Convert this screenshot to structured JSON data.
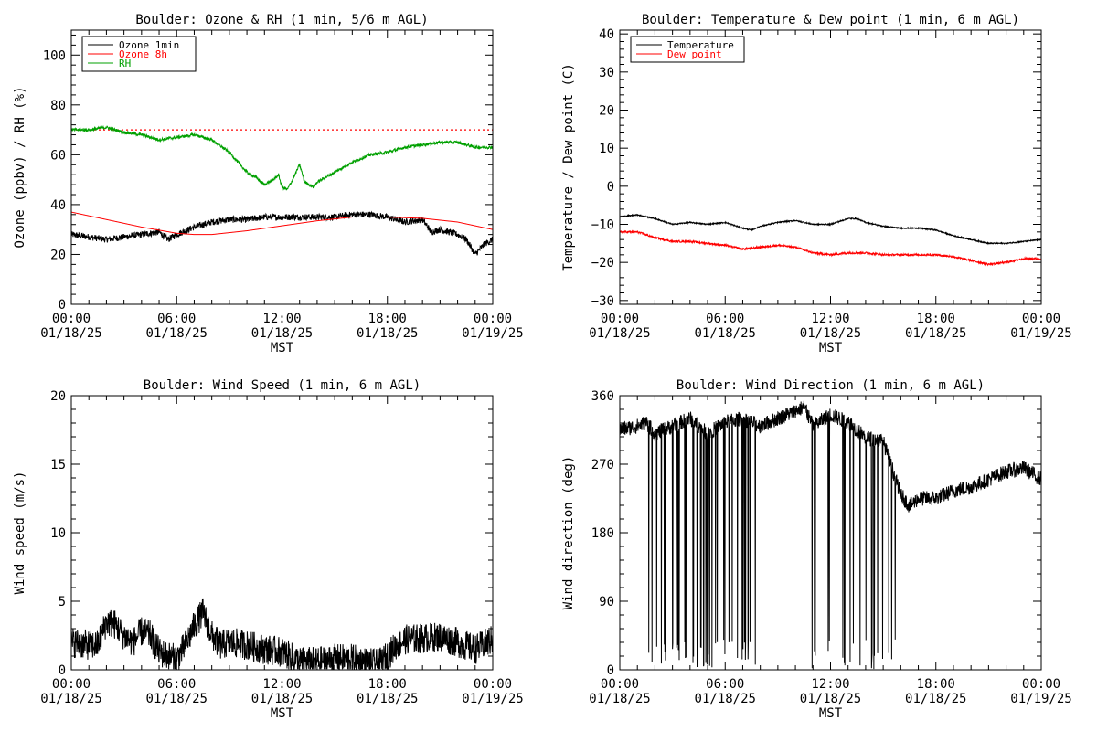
{
  "chart_data": [
    {
      "type": "line",
      "title": "Boulder: Ozone & RH (1 min, 5/6 m AGL)",
      "xlabel": "MST",
      "ylabel": "Ozone (ppbv) / RH (%)",
      "xlim": [
        0,
        24
      ],
      "ylim": [
        0,
        110
      ],
      "x_ticks": [
        0,
        6,
        12,
        18,
        24
      ],
      "x_tick_labels": [
        [
          "00:00",
          "01/18/25"
        ],
        [
          "06:00",
          "01/18/25"
        ],
        [
          "12:00",
          "01/18/25"
        ],
        [
          "18:00",
          "01/18/25"
        ],
        [
          "00:00",
          "01/19/25"
        ]
      ],
      "y_ticks": [
        0,
        20,
        40,
        60,
        80,
        100
      ],
      "y_tick_labels": [
        "0",
        "20",
        "40",
        "60",
        "80",
        "100"
      ],
      "legend": "top-left",
      "reference_line": {
        "y": 70,
        "color": "#ff0000",
        "style": "dotted"
      },
      "series": [
        {
          "name": "Ozone 1min",
          "color": "#000000",
          "noise": 1.3,
          "x": [
            0,
            1,
            2,
            3,
            4,
            5,
            5.5,
            6,
            7,
            8,
            9,
            10,
            11,
            12,
            13,
            14,
            15,
            16,
            17,
            18,
            19,
            20,
            20.5,
            21,
            22,
            22.5,
            23,
            23.5,
            24
          ],
          "y": [
            28,
            27,
            26,
            27,
            28,
            29,
            26,
            28,
            31,
            33,
            34,
            34,
            35,
            35,
            35,
            35,
            35,
            36,
            36,
            35,
            33,
            34,
            29,
            30,
            28,
            26,
            20,
            24,
            26
          ]
        },
        {
          "name": "Ozone 8h",
          "color": "#ff0000",
          "noise": 0,
          "x": [
            0,
            2,
            4,
            6,
            7,
            8,
            10,
            12,
            14,
            16,
            18,
            20,
            22,
            24
          ],
          "y": [
            37,
            34,
            31,
            28.5,
            28,
            28,
            29.5,
            31.5,
            33.5,
            35,
            35,
            34.5,
            33,
            30
          ]
        },
        {
          "name": "RH",
          "color": "#00a000",
          "noise": 0.6,
          "x": [
            0,
            1,
            2,
            3,
            4,
            5,
            6,
            7,
            8,
            9,
            10,
            10.5,
            11,
            11.5,
            11.8,
            12,
            12.3,
            12.6,
            13,
            13.3,
            13.8,
            14,
            15,
            16,
            17,
            18,
            19,
            20,
            21,
            22,
            23,
            24
          ],
          "y": [
            70,
            70,
            71,
            69,
            68,
            66,
            67,
            68,
            66,
            61,
            53,
            51,
            48,
            50,
            52,
            47,
            46,
            50,
            56,
            49,
            47,
            49,
            53,
            57,
            60,
            61,
            63,
            64,
            65,
            65,
            63,
            63
          ]
        }
      ]
    },
    {
      "type": "line",
      "title": "Boulder: Temperature & Dew point (1 min, 6 m AGL)",
      "xlabel": "MST",
      "ylabel": "Temperature / Dew point (C)",
      "xlim": [
        0,
        24
      ],
      "ylim": [
        -31,
        41
      ],
      "x_ticks": [
        0,
        6,
        12,
        18,
        24
      ],
      "x_tick_labels": [
        [
          "00:00",
          "01/18/25"
        ],
        [
          "06:00",
          "01/18/25"
        ],
        [
          "12:00",
          "01/18/25"
        ],
        [
          "18:00",
          "01/18/25"
        ],
        [
          "00:00",
          "01/19/25"
        ]
      ],
      "y_ticks": [
        -30,
        -20,
        -10,
        0,
        10,
        20,
        30,
        40
      ],
      "y_tick_labels": [
        "−30",
        "−20",
        "−10",
        "0",
        "10",
        "20",
        "30",
        "40"
      ],
      "legend": "top-left",
      "series": [
        {
          "name": "Temperature",
          "color": "#000000",
          "noise": 0.15,
          "x": [
            0,
            1,
            2,
            3,
            4,
            5,
            6,
            7,
            7.5,
            8,
            9,
            10,
            11,
            12,
            13,
            13.5,
            14,
            15,
            16,
            17,
            18,
            19,
            20,
            21,
            22,
            23,
            24
          ],
          "y": [
            -8,
            -7.5,
            -8.5,
            -10,
            -9.5,
            -10,
            -9.5,
            -11,
            -11.5,
            -10.5,
            -9.5,
            -9,
            -10,
            -10,
            -8.5,
            -8.5,
            -9.5,
            -10.5,
            -11,
            -11,
            -11.5,
            -13,
            -14,
            -15,
            -15,
            -14.5,
            -14
          ]
        },
        {
          "name": "Dew point",
          "color": "#ff0000",
          "noise": 0.25,
          "x": [
            0,
            1,
            2,
            3,
            4,
            5,
            6,
            7,
            8,
            9,
            10,
            11,
            12,
            13,
            14,
            15,
            16,
            17,
            18,
            19,
            20,
            21,
            22,
            23,
            24
          ],
          "y": [
            -12,
            -12,
            -13.5,
            -14.5,
            -14.5,
            -15,
            -15.5,
            -16.5,
            -16,
            -15.5,
            -16,
            -17.5,
            -18,
            -17.5,
            -17.5,
            -18,
            -18,
            -18,
            -18,
            -18.5,
            -19.5,
            -20.5,
            -20,
            -19,
            -19
          ]
        }
      ]
    },
    {
      "type": "line",
      "title": "Boulder: Wind Speed (1 min, 6 m AGL)",
      "xlabel": "MST",
      "ylabel": "Wind speed (m/s)",
      "xlim": [
        0,
        24
      ],
      "ylim": [
        0,
        20
      ],
      "x_ticks": [
        0,
        6,
        12,
        18,
        24
      ],
      "x_tick_labels": [
        [
          "00:00",
          "01/18/25"
        ],
        [
          "06:00",
          "01/18/25"
        ],
        [
          "12:00",
          "01/18/25"
        ],
        [
          "18:00",
          "01/18/25"
        ],
        [
          "00:00",
          "01/19/25"
        ]
      ],
      "y_ticks": [
        0,
        5,
        10,
        15,
        20
      ],
      "y_tick_labels": [
        "0",
        "5",
        "10",
        "15",
        "20"
      ],
      "series": [
        {
          "name": "",
          "color": "#000000",
          "noise": 1.1,
          "x": [
            0,
            1,
            1.5,
            2,
            2.5,
            3,
            3.5,
            4,
            4.5,
            5,
            5.5,
            6,
            6.5,
            7,
            7.5,
            8,
            8.5,
            9,
            10,
            11,
            12,
            13,
            14,
            15,
            16,
            17,
            17.5,
            18,
            18.5,
            19,
            20,
            21,
            22,
            23,
            24
          ],
          "y": [
            2,
            1.8,
            1.8,
            3.5,
            3.3,
            2.5,
            2,
            2.8,
            2.5,
            1.3,
            1,
            0.8,
            1.8,
            3.2,
            4.2,
            2.5,
            1.8,
            2,
            1.8,
            1.5,
            1.3,
            0.6,
            0.6,
            0.8,
            0.8,
            0.5,
            0.4,
            1,
            1.8,
            2.2,
            2.3,
            2.4,
            2,
            1.5,
            2.2
          ]
        }
      ]
    },
    {
      "type": "line",
      "title": "Boulder: Wind Direction (1 min, 6 m AGL)",
      "xlabel": "MST",
      "ylabel": "Wind direction (deg)",
      "xlim": [
        0,
        24
      ],
      "ylim": [
        0,
        360
      ],
      "x_ticks": [
        0,
        6,
        12,
        18,
        24
      ],
      "x_tick_labels": [
        [
          "00:00",
          "01/18/25"
        ],
        [
          "06:00",
          "01/18/25"
        ],
        [
          "12:00",
          "01/18/25"
        ],
        [
          "18:00",
          "01/18/25"
        ],
        [
          "00:00",
          "01/19/25"
        ]
      ],
      "y_ticks": [
        0,
        90,
        180,
        270,
        360
      ],
      "y_tick_labels": [
        "0",
        "90",
        "180",
        "270",
        "360"
      ],
      "series": [
        {
          "name": "",
          "color": "#000000",
          "noise": 10,
          "x": [
            0,
            1,
            1.5,
            2,
            3,
            4,
            5,
            6,
            7,
            8,
            9,
            10,
            10.5,
            11,
            12,
            13,
            14,
            15,
            16,
            16.5,
            17,
            18,
            19,
            20,
            21,
            22,
            23,
            24
          ],
          "y": [
            315,
            320,
            325,
            310,
            320,
            330,
            310,
            325,
            330,
            320,
            330,
            340,
            345,
            320,
            335,
            325,
            305,
            300,
            230,
            215,
            225,
            225,
            235,
            240,
            250,
            260,
            265,
            250
          ],
          "wrap_segments": [
            [
              1.6,
              8.0
            ],
            [
              10.5,
              16.0
            ]
          ]
        }
      ]
    }
  ]
}
